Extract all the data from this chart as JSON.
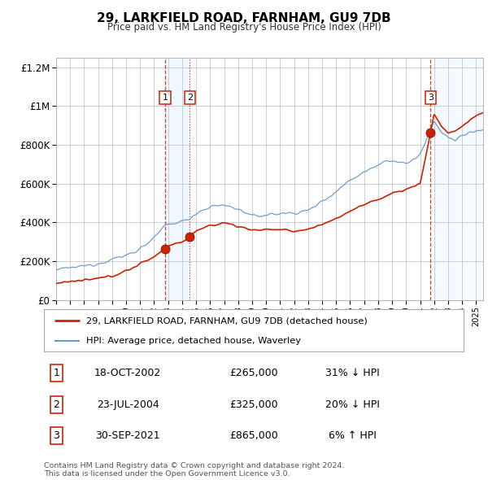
{
  "title": "29, LARKFIELD ROAD, FARNHAM, GU9 7DB",
  "subtitle": "Price paid vs. HM Land Registry's House Price Index (HPI)",
  "ylim": [
    0,
    1250000
  ],
  "yticks": [
    0,
    200000,
    400000,
    600000,
    800000,
    1000000,
    1200000
  ],
  "ytick_labels": [
    "£0",
    "£200K",
    "£400K",
    "£600K",
    "£800K",
    "£1M",
    "£1.2M"
  ],
  "background_color": "#ffffff",
  "grid_color": "#bbbbbb",
  "hpi_color": "#6699cc",
  "price_color": "#cc2200",
  "transactions": [
    {
      "id": 1,
      "date_x": 2002.79,
      "price": 265000,
      "linestyle": "--"
    },
    {
      "id": 2,
      "date_x": 2004.55,
      "price": 325000,
      "linestyle": ":"
    },
    {
      "id": 3,
      "date_x": 2021.75,
      "price": 865000,
      "linestyle": "--"
    }
  ],
  "legend_entries": [
    {
      "label": "29, LARKFIELD ROAD, FARNHAM, GU9 7DB (detached house)",
      "color": "#cc2200"
    },
    {
      "label": "HPI: Average price, detached house, Waverley",
      "color": "#6699cc"
    }
  ],
  "footnote": "Contains HM Land Registry data © Crown copyright and database right 2024.\nThis data is licensed under the Open Government Licence v3.0.",
  "table_rows": [
    {
      "id": "1",
      "date": "18-OCT-2002",
      "price": "£265,000",
      "pct": "31% ↓ HPI"
    },
    {
      "id": "2",
      "date": "23-JUL-2004",
      "price": "£325,000",
      "pct": "20% ↓ HPI"
    },
    {
      "id": "3",
      "date": "30-SEP-2021",
      "price": "£865,000",
      "pct": "6% ↑ HPI"
    }
  ],
  "xmin": 1995,
  "xmax": 2025.5,
  "future_start": 2022.0,
  "span_x1": 2002.79,
  "span_x2": 2004.55
}
